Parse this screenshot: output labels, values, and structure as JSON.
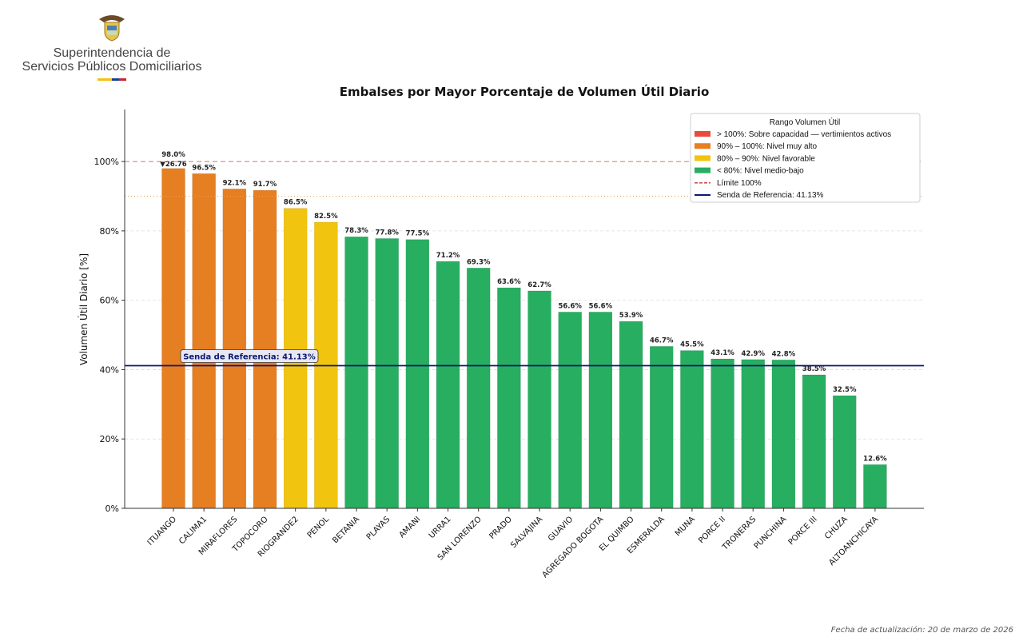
{
  "logo": {
    "line1": "Superintendencia de",
    "line2": "Servicios Públicos Domiciliarios",
    "flag_colors": [
      "#f4c20d",
      "#1f3a93",
      "#d0202e"
    ]
  },
  "footer": "Fecha de actualización: 20 de marzo de 2026",
  "chart_data": {
    "type": "bar",
    "title": "Embalses por Mayor Porcentaje de Volumen Útil Diario",
    "xlabel": "",
    "ylabel": "Volumen Útil Diario [%]",
    "ylim": [
      0,
      115
    ],
    "yticks": [
      0,
      20,
      40,
      60,
      80,
      100
    ],
    "ytick_labels": [
      "0%",
      "20%",
      "40%",
      "60%",
      "80%",
      "100%"
    ],
    "grid": "horizontal dashed",
    "categories": [
      "ITUANGO",
      "CALIMA1",
      "MIRAFLORES",
      "TOPOCORO",
      "RIOGRANDE2",
      "PENOL",
      "BETANIA",
      "PLAYAS",
      "AMANI",
      "URRA1",
      "SAN LORENZO",
      "PRADO",
      "SALVAJINA",
      "GUAVIO",
      "AGREGADO BOGOTA",
      "EL QUIMBO",
      "ESMERALDA",
      "MUNA",
      "PORCE II",
      "TRONERAS",
      "PUNCHINA",
      "PORCE III",
      "CHUZA",
      "ALTOANCHICAYA"
    ],
    "values": [
      98.0,
      96.5,
      92.1,
      91.7,
      86.5,
      82.5,
      78.3,
      77.8,
      77.5,
      71.2,
      69.3,
      63.6,
      62.7,
      56.6,
      56.6,
      53.9,
      46.7,
      45.5,
      43.1,
      42.9,
      42.8,
      38.5,
      32.5,
      12.6
    ],
    "data_labels": [
      "98.0%",
      "96.5%",
      "92.1%",
      "91.7%",
      "86.5%",
      "82.5%",
      "78.3%",
      "77.8%",
      "77.5%",
      "71.2%",
      "69.3%",
      "63.6%",
      "62.7%",
      "56.6%",
      "56.6%",
      "53.9%",
      "46.7%",
      "45.5%",
      "43.1%",
      "42.9%",
      "42.8%",
      "38.5%",
      "32.5%",
      "12.6%"
    ],
    "annotations": [
      {
        "category": "ITUANGO",
        "text": "▼26.76"
      }
    ],
    "colors": {
      "over": "#e74c3c",
      "very_high": "#e67e22",
      "favorable": "#f1c40f",
      "medium_low": "#27ae60",
      "limit": "#c0392b",
      "reference": "#0b1a6e"
    },
    "reference_line": {
      "value": 41.13,
      "label": "Senda de Referencia: 41.13%"
    },
    "limit_line": {
      "value": 100
    },
    "threshold_line": {
      "value": 90
    },
    "legend": {
      "placement": "top-right",
      "title": "Rango Volumen Útil",
      "entries": [
        {
          "label": "> 100%: Sobre capacidad — vertimientos activos",
          "color": "#e74c3c",
          "kind": "patch"
        },
        {
          "label": "90% – 100%: Nivel muy alto",
          "color": "#e67e22",
          "kind": "patch"
        },
        {
          "label": "80% – 90%: Nivel favorable",
          "color": "#f1c40f",
          "kind": "patch"
        },
        {
          "label": "< 80%: Nivel medio-bajo",
          "color": "#27ae60",
          "kind": "patch"
        },
        {
          "label": "Límite 100%",
          "color": "#c0392b",
          "kind": "dashed"
        },
        {
          "label": "Senda de Referencia: 41.13%",
          "color": "#0b1a6e",
          "kind": "line"
        }
      ]
    }
  }
}
